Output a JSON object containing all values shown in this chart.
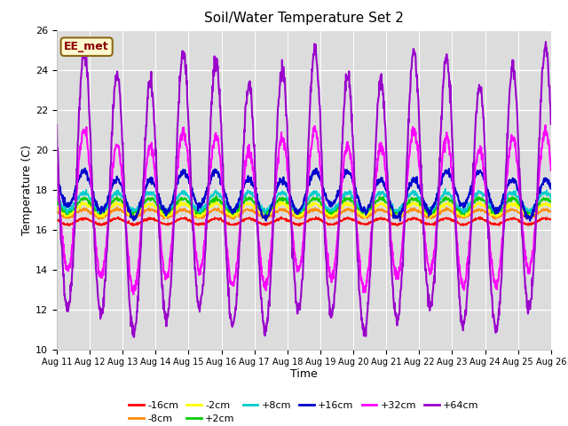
{
  "title": "Soil/Water Temperature Set 2",
  "xlabel": "Time",
  "ylabel": "Temperature (C)",
  "ylim": [
    10,
    26
  ],
  "yticks": [
    10,
    12,
    14,
    16,
    18,
    20,
    22,
    24,
    26
  ],
  "x_tick_labels": [
    "Aug 11",
    "Aug 12",
    "Aug 13",
    "Aug 14",
    "Aug 15",
    "Aug 16",
    "Aug 17",
    "Aug 18",
    "Aug 19",
    "Aug 20",
    "Aug 21",
    "Aug 22",
    "Aug 23",
    "Aug 24",
    "Aug 25",
    "Aug 26"
  ],
  "annotation_text": "EE_met",
  "annotation_color": "#8B0000",
  "annotation_bg": "#FFFACD",
  "annotation_border": "#8B6914",
  "colors": {
    "-16cm": "#FF0000",
    "-8cm": "#FF8C00",
    "-2cm": "#FFFF00",
    "+2cm": "#00CC00",
    "+8cm": "#00CCCC",
    "+16cm": "#0000CC",
    "+32cm": "#FF00FF",
    "+64cm": "#9900CC"
  },
  "bg_color": "#DCDCDC",
  "grid_color": "#FFFFFF",
  "legend_order_row1": [
    "-16cm",
    "-8cm",
    "-2cm",
    "+2cm",
    "+8cm",
    "+16cm"
  ],
  "legend_order_row2": [
    "+32cm",
    "+64cm"
  ]
}
